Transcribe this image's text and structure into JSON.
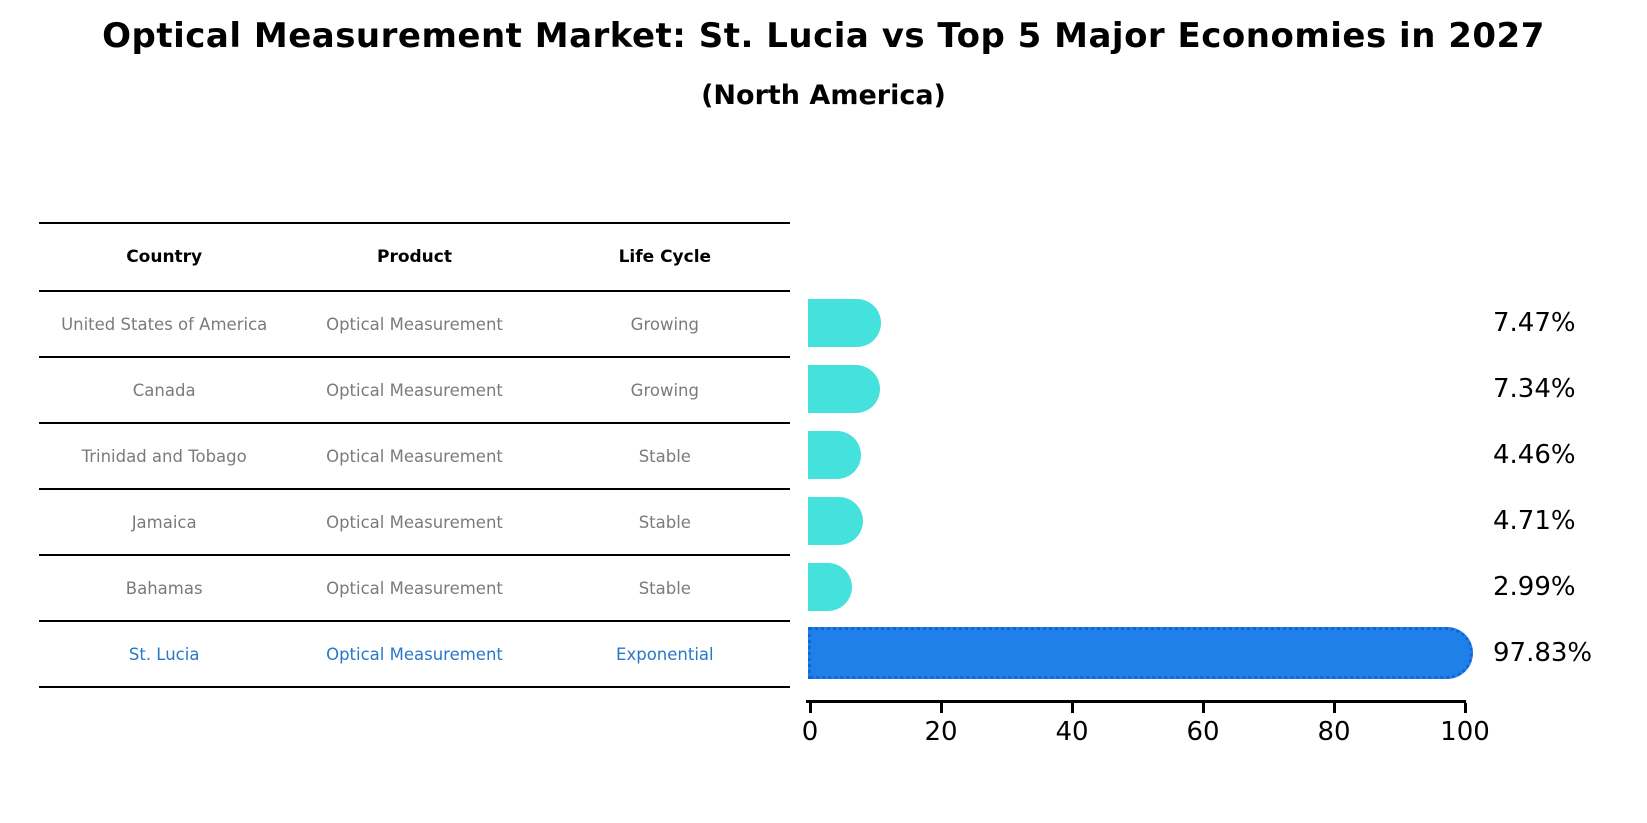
{
  "title": "Optical Measurement Market: St. Lucia vs Top 5 Major Economies in 2027",
  "subtitle": "(North America)",
  "table": {
    "headers": [
      "Country",
      "Product",
      "Life Cycle"
    ],
    "rows": [
      {
        "country": "United States of America",
        "product": "Optical Measurement",
        "life_cycle": "Growing",
        "highlight": false
      },
      {
        "country": "Canada",
        "product": "Optical Measurement",
        "life_cycle": "Growing",
        "highlight": false
      },
      {
        "country": "Trinidad and Tobago",
        "product": "Optical Measurement",
        "life_cycle": "Stable",
        "highlight": false
      },
      {
        "country": "Jamaica",
        "product": "Optical Measurement",
        "life_cycle": "Stable",
        "highlight": false
      },
      {
        "country": "Bahamas",
        "product": "Optical Measurement",
        "life_cycle": "Stable",
        "highlight": false
      },
      {
        "country": "St. Lucia",
        "product": "Optical Measurement",
        "life_cycle": "Exponential",
        "highlight": true
      }
    ]
  },
  "chart_data": {
    "type": "bar",
    "orientation": "horizontal",
    "title": "Optical Measurement Market: St. Lucia vs Top 5 Major Economies in 2027",
    "subtitle": "(North America)",
    "categories": [
      "United States of America",
      "Canada",
      "Trinidad and Tobago",
      "Jamaica",
      "Bahamas",
      "St. Lucia"
    ],
    "values": [
      7.47,
      7.34,
      4.46,
      4.71,
      2.99,
      97.83
    ],
    "value_labels": [
      "7.47%",
      "7.34%",
      "4.46%",
      "4.71%",
      "2.99%",
      "97.83%"
    ],
    "highlight_index": 5,
    "xlim": [
      0,
      100
    ],
    "xticks": [
      "0",
      "20",
      "40",
      "60",
      "80",
      "100"
    ],
    "grid": false,
    "legend": null,
    "colors": {
      "bar": "#45e1dc",
      "highlight_bar": "#1e80e8",
      "highlight_border": "#1565d8",
      "axis": "#000000",
      "table_text": "#7b7b7b",
      "highlight_text": "#2878c8"
    }
  }
}
